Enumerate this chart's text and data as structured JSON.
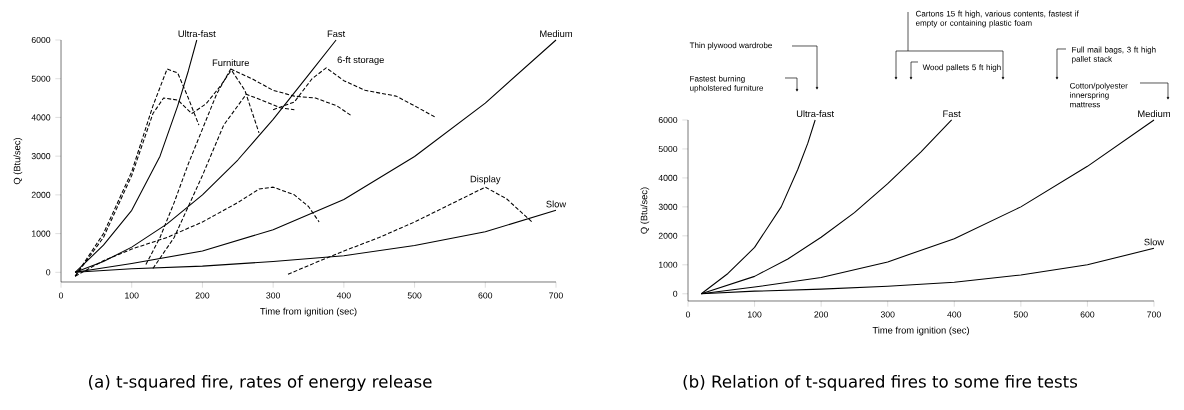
{
  "chart_data": [
    {
      "type": "line",
      "xlabel": "Time from ignition (sec)",
      "ylabel": "Q (Btu/sec)",
      "xlim": [
        0,
        700
      ],
      "ylim": [
        -250,
        6000
      ],
      "xticks": [
        0,
        100,
        200,
        300,
        400,
        500,
        600,
        700
      ],
      "yticks": [
        0,
        1000,
        2000,
        3000,
        4000,
        5000,
        6000
      ],
      "annotations": [
        "(a) t-squared fire, rates of energy release"
      ],
      "series": [
        {
          "name": "Ultra-fast",
          "color": "#000000",
          "line_style": "solid",
          "x": [
            20,
            60,
            100,
            140,
            165,
            180,
            192
          ],
          "values": [
            0,
            700,
            1600,
            3000,
            4300,
            5200,
            6000
          ]
        },
        {
          "name": "Fast",
          "color": "#000000",
          "line_style": "solid",
          "x": [
            20,
            60,
            100,
            150,
            200,
            250,
            300,
            350,
            389
          ],
          "values": [
            0,
            280,
            650,
            1250,
            2000,
            2900,
            3950,
            5100,
            6000
          ]
        },
        {
          "name": "Medium",
          "color": "#000000",
          "line_style": "solid",
          "x": [
            20,
            100,
            200,
            300,
            400,
            500,
            600,
            700
          ],
          "values": [
            0,
            230,
            550,
            1100,
            1880,
            2990,
            4370,
            6000
          ]
        },
        {
          "name": "Slow",
          "color": "#000000",
          "line_style": "solid",
          "x": [
            20,
            100,
            200,
            300,
            400,
            500,
            600,
            700
          ],
          "values": [
            0,
            90,
            160,
            280,
            430,
            690,
            1050,
            1600
          ]
        },
        {
          "color": "#000000",
          "line_style": "dashed",
          "x": [
            20,
            60,
            100,
            130,
            150,
            165,
            180,
            195
          ],
          "values": [
            -100,
            1000,
            2600,
            4300,
            5250,
            5150,
            4500,
            3800
          ]
        },
        {
          "color": "#000000",
          "line_style": "dashed",
          "x": [
            20,
            60,
            100,
            130,
            145,
            165,
            185,
            205,
            225,
            240
          ],
          "values": [
            -100,
            900,
            2500,
            4100,
            4500,
            4450,
            4100,
            4350,
            4800,
            5200
          ]
        },
        {
          "name": "Furniture",
          "color": "#000000",
          "line_style": "dashed",
          "x": [
            120,
            140,
            160,
            180,
            200,
            220,
            240,
            260,
            280
          ],
          "values": [
            200,
            900,
            1800,
            2800,
            3700,
            4600,
            5250,
            4700,
            3600
          ]
        },
        {
          "color": "#000000",
          "line_style": "dashed",
          "x": [
            130,
            160,
            200,
            230,
            262,
            290,
            310,
            330
          ],
          "values": [
            100,
            900,
            2500,
            3800,
            4600,
            4400,
            4250,
            4200
          ]
        },
        {
          "color": "#000000",
          "line_style": "dashed",
          "x": [
            240,
            270,
            300,
            330,
            360,
            390,
            411
          ],
          "values": [
            5250,
            5000,
            4700,
            4550,
            4500,
            4300,
            4040
          ]
        },
        {
          "name": "6-ft storage",
          "color": "#000000",
          "line_style": "dashed",
          "x": [
            300,
            330,
            355,
            375,
            400,
            430,
            474,
            500,
            530
          ],
          "values": [
            4200,
            4400,
            5000,
            5280,
            4950,
            4700,
            4550,
            4300,
            4000
          ]
        },
        {
          "color": "#000000",
          "line_style": "dashed",
          "x": [
            20,
            60,
            100,
            150,
            200,
            250,
            280,
            300,
            330,
            350,
            365
          ],
          "values": [
            -100,
            300,
            600,
            900,
            1300,
            1800,
            2150,
            2200,
            2000,
            1700,
            1300
          ]
        },
        {
          "name": "Display",
          "color": "#000000",
          "line_style": "dashed",
          "x": [
            321,
            360,
            400,
            450,
            500,
            550,
            600,
            630,
            666
          ],
          "values": [
            -50,
            250,
            550,
            900,
            1300,
            1750,
            2200,
            1900,
            1300
          ]
        }
      ]
    },
    {
      "type": "line",
      "xlabel": "Time from ignition (sec)",
      "ylabel": "Q (Btu/sec)",
      "xlim": [
        0,
        700
      ],
      "ylim": [
        -250,
        6000
      ],
      "xticks": [
        0,
        100,
        200,
        300,
        400,
        500,
        600,
        700
      ],
      "yticks": [
        0,
        1000,
        2000,
        3000,
        4000,
        5000,
        6000
      ],
      "annotations": [
        "(b) Relation of t-squared fires to some fire tests",
        "Thin plywood wardrobe",
        "Fastest burning upholstered furniture",
        "Cartons 15 ft high, various contents, fastest if empty or containing plastic foam",
        "Wood pallets 5 ft high",
        "Full mail bags, 3 ft high pallet stack",
        "Cotton/polyester innerspring mattress"
      ],
      "series": [
        {
          "name": "Ultra-fast",
          "color": "#000000",
          "line_style": "solid",
          "x": [
            20,
            60,
            100,
            140,
            165,
            180,
            191
          ],
          "values": [
            0,
            700,
            1600,
            3000,
            4300,
            5200,
            6000
          ]
        },
        {
          "name": "Fast",
          "color": "#000000",
          "line_style": "solid",
          "x": [
            20,
            100,
            150,
            200,
            250,
            300,
            350,
            396
          ],
          "values": [
            0,
            600,
            1200,
            1950,
            2800,
            3800,
            4900,
            6000
          ]
        },
        {
          "name": "Medium",
          "color": "#000000",
          "line_style": "solid",
          "x": [
            20,
            100,
            200,
            300,
            400,
            500,
            600,
            700
          ],
          "values": [
            0,
            230,
            560,
            1100,
            1900,
            3000,
            4400,
            6000
          ]
        },
        {
          "name": "Slow",
          "color": "#000000",
          "line_style": "solid",
          "x": [
            20,
            100,
            200,
            300,
            400,
            500,
            600,
            700
          ],
          "values": [
            0,
            90,
            160,
            260,
            400,
            650,
            1000,
            1570
          ]
        }
      ]
    }
  ]
}
